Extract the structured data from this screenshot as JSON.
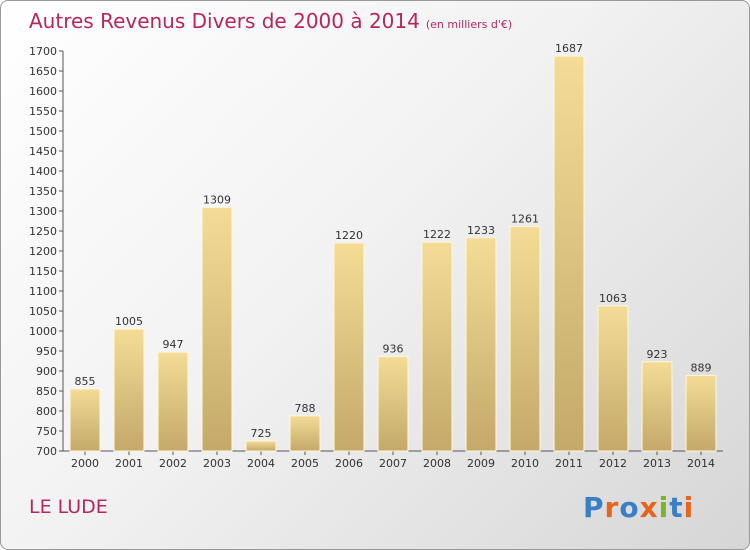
{
  "header": {
    "title": "Autres Revenus Divers de 2000 à 2014",
    "subtitle": "(en milliers d'€)"
  },
  "footer": {
    "commune": "LE LUDE",
    "logo": [
      "P",
      "r",
      "o",
      "x",
      "i",
      "t",
      "i"
    ]
  },
  "colors": {
    "title": "#b8255f",
    "bar_light": "#f4dc97",
    "bar_dark": "#c4a96a",
    "logo": [
      "#3a7fc6",
      "#e8641b",
      "#3a7fc6",
      "#e8641b",
      "#7cb428",
      "#3a7fc6",
      "#e8641b"
    ]
  },
  "chart_data": {
    "type": "bar",
    "title": "Autres Revenus Divers de 2000 à 2014",
    "subtitle": "(en milliers d'€)",
    "categories": [
      "2000",
      "2001",
      "2002",
      "2003",
      "2004",
      "2005",
      "2006",
      "2007",
      "2008",
      "2009",
      "2010",
      "2011",
      "2012",
      "2013",
      "2014"
    ],
    "values": [
      855,
      1005,
      947,
      1309,
      725,
      788,
      1220,
      936,
      1222,
      1233,
      1261,
      1687,
      1063,
      923,
      889
    ],
    "ylim": [
      700,
      1700
    ],
    "yticks": [
      700,
      750,
      800,
      850,
      900,
      950,
      1000,
      1050,
      1100,
      1150,
      1200,
      1250,
      1300,
      1350,
      1400,
      1450,
      1500,
      1550,
      1600,
      1650,
      1700
    ],
    "grid": false,
    "legend": "none"
  }
}
